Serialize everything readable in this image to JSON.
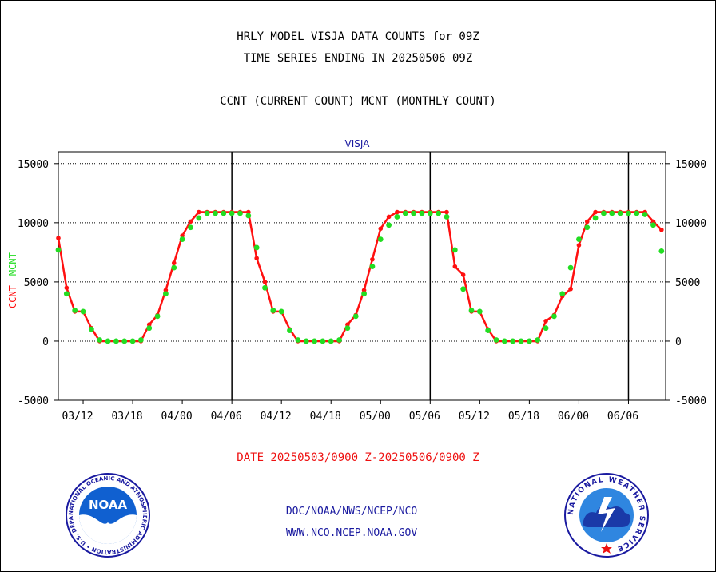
{
  "header": {
    "line1": "HRLY MODEL VISJA DATA COUNTS for 09Z",
    "line2": "TIME SERIES ENDING IN 20250506 09Z",
    "line3": "CCNT (CURRENT COUNT) MCNT (MONTHLY COUNT)"
  },
  "footer": {
    "date_range": "DATE 20250503/0900 Z-20250506/0900 Z",
    "org": "DOC/NOAA/NWS/NCEP/NCO",
    "url": "WWW.NCO.NCEP.NOAA.GOV"
  },
  "logos": {
    "noaa_text": "NOAA",
    "noaa_ring": "NATIONAL OCEANIC AND ATMOSPHERIC ADMINISTRATION • U.S. DEPARTMENT OF COMMERCE •",
    "nws_ring": "NATIONAL WEATHER SERVICE"
  },
  "colors": {
    "ccnt": "#ff1010",
    "mcnt": "#22dd22",
    "title": "#1a1aa0",
    "date": "#ee1111"
  },
  "chart_data": {
    "type": "line",
    "title": "VISJA",
    "ylabel_parts": [
      {
        "text": "CCNT",
        "color": "#ff1010"
      },
      {
        "text": "MCNT",
        "color": "#22dd22"
      }
    ],
    "ylim": [
      -5000,
      16000
    ],
    "yticks": [
      15000,
      10000,
      5000,
      0,
      -5000
    ],
    "xlim": [
      0,
      73.5
    ],
    "xtick_labels": [
      {
        "x": 3,
        "label": "03/12"
      },
      {
        "x": 9,
        "label": "03/18"
      },
      {
        "x": 15,
        "label": "04/00"
      },
      {
        "x": 21,
        "label": "04/06"
      },
      {
        "x": 27,
        "label": "04/12"
      },
      {
        "x": 33,
        "label": "04/18"
      },
      {
        "x": 39,
        "label": "05/00"
      },
      {
        "x": 45,
        "label": "05/06"
      },
      {
        "x": 51,
        "label": "05/12"
      },
      {
        "x": 57,
        "label": "05/18"
      },
      {
        "x": 63,
        "label": "06/00"
      },
      {
        "x": 69,
        "label": "06/06"
      }
    ],
    "day_lines": [
      21,
      45,
      69
    ],
    "grid": "horizontal dotted at ytick values",
    "series": [
      {
        "name": "CCNT",
        "color": "#ff1010",
        "style": "line+dots",
        "values": [
          8700,
          4500,
          2500,
          2500,
          1100,
          0,
          0,
          0,
          0,
          0,
          0,
          1400,
          2200,
          4300,
          6600,
          8900,
          10100,
          10900,
          10900,
          10900,
          10900,
          10900,
          10900,
          10900,
          7000,
          5000,
          2500,
          2500,
          1000,
          0,
          0,
          0,
          0,
          0,
          0,
          1400,
          2200,
          4300,
          6900,
          9500,
          10500,
          10900,
          10900,
          10900,
          10900,
          10900,
          10900,
          10900,
          6300,
          5600,
          2500,
          2500,
          1000,
          0,
          0,
          0,
          0,
          0,
          0,
          1700,
          2200,
          3800,
          4400,
          8100,
          10100,
          10900,
          10900,
          10900,
          10900,
          10900,
          10900,
          10900,
          10100,
          9400
        ]
      },
      {
        "name": "MCNT",
        "color": "#22dd22",
        "style": "dots",
        "values": [
          7700,
          4000,
          2600,
          2500,
          1000,
          100,
          0,
          0,
          0,
          0,
          100,
          1100,
          2100,
          4000,
          6200,
          8600,
          9600,
          10400,
          10800,
          10800,
          10800,
          10800,
          10800,
          10600,
          7900,
          4500,
          2600,
          2500,
          900,
          100,
          0,
          0,
          0,
          0,
          100,
          1100,
          2100,
          4000,
          6300,
          8600,
          9800,
          10500,
          10800,
          10800,
          10800,
          10800,
          10800,
          10500,
          7700,
          4400,
          2600,
          2500,
          900,
          100,
          0,
          0,
          0,
          0,
          100,
          1100,
          2100,
          4000,
          6200,
          8600,
          9600,
          10400,
          10800,
          10800,
          10800,
          10800,
          10800,
          10700,
          9800,
          7600
        ]
      }
    ]
  }
}
